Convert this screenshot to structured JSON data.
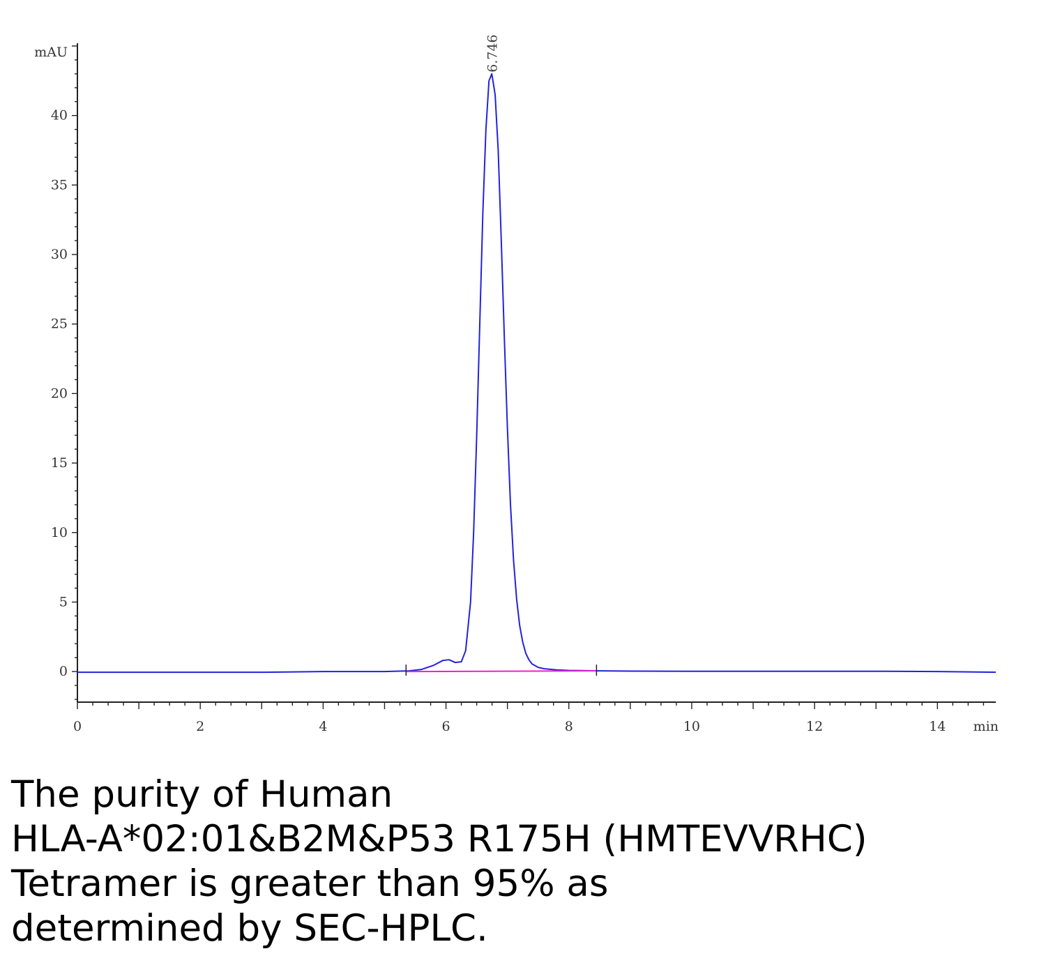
{
  "chart_data": {
    "type": "line",
    "title": "",
    "xlabel": "",
    "ylabel": "",
    "y_unit": "mAU",
    "x_unit": "min",
    "xlim": [
      0,
      14.95
    ],
    "ylim": [
      -2.2,
      45.2
    ],
    "x_ticks": [
      "0",
      "2",
      "4",
      "6",
      "8",
      "10",
      "12",
      "14"
    ],
    "y_ticks": [
      "0",
      "5",
      "10",
      "15",
      "20",
      "25",
      "30",
      "35",
      "40"
    ],
    "grid": false,
    "legend": "none",
    "peak_label": "6.746",
    "series": [
      {
        "color": "#2222dd",
        "x": [
          0,
          1,
          2,
          3,
          4,
          5,
          5.4,
          5.6,
          5.8,
          5.95,
          6.05,
          6.15,
          6.25,
          6.32,
          6.4,
          6.45,
          6.5,
          6.55,
          6.6,
          6.65,
          6.7,
          6.746,
          6.8,
          6.85,
          6.9,
          6.95,
          7.0,
          7.05,
          7.1,
          7.15,
          7.2,
          7.25,
          7.3,
          7.35,
          7.4,
          7.5,
          7.6,
          7.8,
          8.0,
          8.5,
          9,
          10,
          11,
          12,
          13,
          14,
          14.95
        ],
        "y": [
          -0.05,
          -0.05,
          -0.05,
          -0.05,
          0.0,
          0.0,
          0.05,
          0.15,
          0.45,
          0.8,
          0.85,
          0.65,
          0.7,
          1.5,
          5.0,
          10.0,
          17.0,
          25.0,
          33.0,
          39.0,
          42.5,
          43.0,
          41.5,
          37.5,
          31.0,
          24.0,
          17.5,
          12.0,
          8.0,
          5.2,
          3.3,
          2.1,
          1.3,
          0.85,
          0.55,
          0.3,
          0.2,
          0.12,
          0.08,
          0.05,
          0.03,
          0.02,
          0.02,
          0.02,
          0.02,
          0.0,
          -0.05
        ]
      },
      {
        "color": "#ee22cc",
        "x": [
          5.35,
          8.45
        ],
        "y": [
          0.0,
          0.05
        ]
      }
    ],
    "integration_marks": [
      5.35,
      8.45
    ]
  },
  "caption": {
    "line1": "The purity of Human",
    "line2": "HLA-A*02:01&B2M&P53 R175H (HMTEVVRHC)",
    "line3": "Tetramer is greater than 95% as",
    "line4": "determined by SEC-HPLC."
  }
}
